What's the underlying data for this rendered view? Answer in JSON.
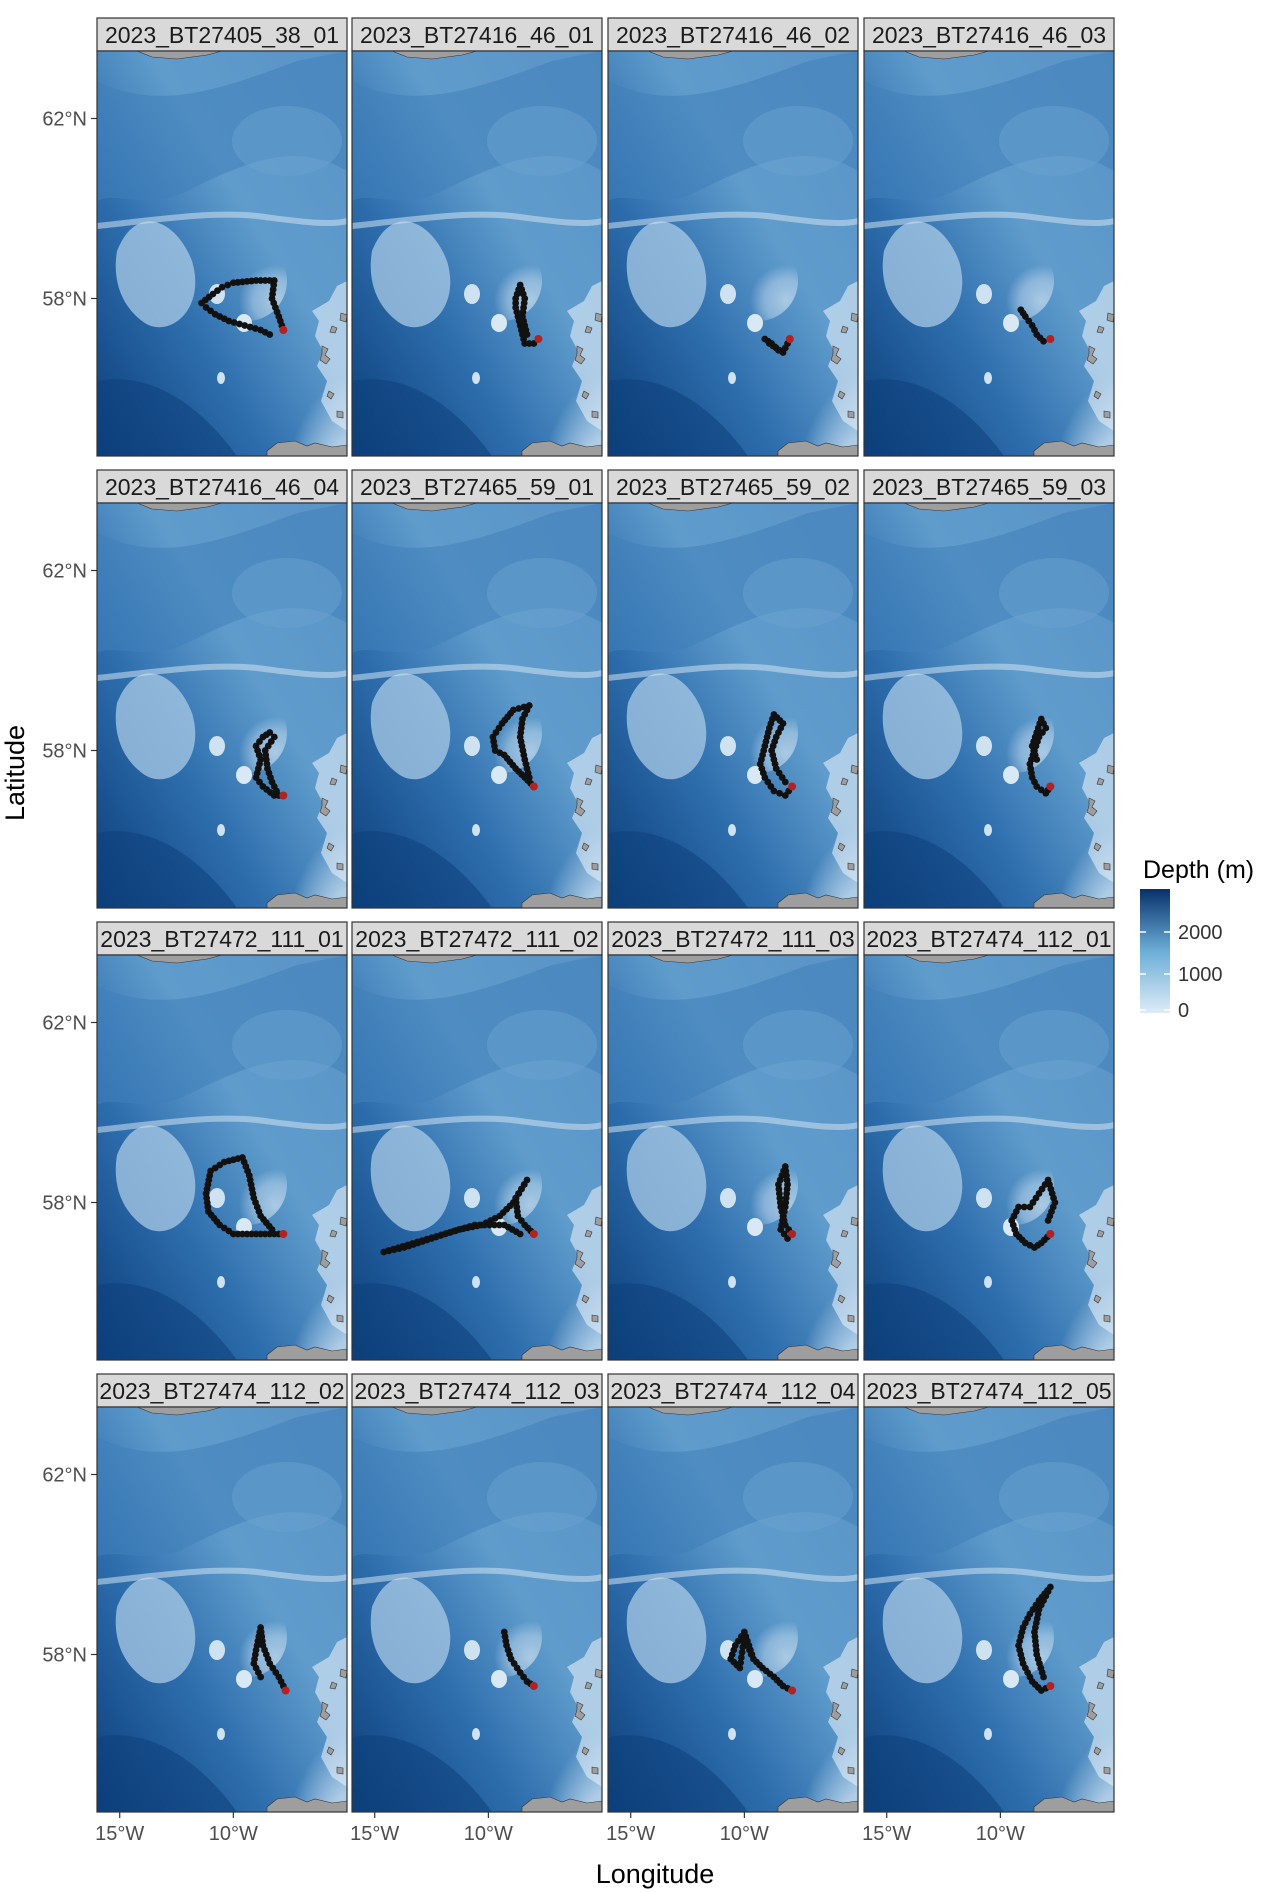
{
  "x_axis_label": "Longitude",
  "y_axis_label": "Latitude",
  "x_ticks": [
    "15°W",
    "10°W"
  ],
  "y_ticks": [
    "62°N",
    "58°N"
  ],
  "legend": {
    "title": "Depth (m)",
    "labels": [
      "2000",
      "1000",
      "0"
    ],
    "color_deep": "#08306b",
    "color_shallow": "#deebf7"
  },
  "colors": {
    "track_point": "#111111",
    "track_line": "#f4a6a6",
    "deploy_point": "#b22222",
    "land": "#9e9e9e",
    "strip_fill": "#d9d9d9",
    "panel_border": "#333333"
  },
  "panels": [
    "2023_BT27405_38_01",
    "2023_BT27416_46_01",
    "2023_BT27416_46_02",
    "2023_BT27416_46_03",
    "2023_BT27416_46_04",
    "2023_BT27465_59_01",
    "2023_BT27465_59_02",
    "2023_BT27465_59_03",
    "2023_BT27472_111_01",
    "2023_BT27472_111_02",
    "2023_BT27472_111_03",
    "2023_BT27474_112_01",
    "2023_BT27474_112_02",
    "2023_BT27474_112_03",
    "2023_BT27474_112_04",
    "2023_BT27474_112_05"
  ],
  "tracks": [
    [
      [
        -7.8,
        57.3
      ],
      [
        -8.0,
        57.6
      ],
      [
        -8.3,
        58.0
      ],
      [
        -8.2,
        58.4
      ],
      [
        -9.0,
        58.4
      ],
      [
        -10.0,
        58.35
      ],
      [
        -10.5,
        58.25
      ],
      [
        -10.9,
        58.1
      ],
      [
        -11.4,
        57.9
      ],
      [
        -11.2,
        57.8
      ],
      [
        -10.8,
        57.65
      ],
      [
        -10.2,
        57.5
      ],
      [
        -9.5,
        57.4
      ],
      [
        -8.8,
        57.3
      ],
      [
        -8.4,
        57.2
      ]
    ],
    [
      [
        -7.8,
        57.1
      ],
      [
        -8.0,
        57.0
      ],
      [
        -8.4,
        57.0
      ],
      [
        -8.6,
        57.4
      ],
      [
        -8.8,
        57.8
      ],
      [
        -8.8,
        58.0
      ],
      [
        -8.6,
        58.3
      ],
      [
        -8.4,
        58.0
      ],
      [
        -8.5,
        57.6
      ],
      [
        -8.3,
        57.2
      ]
    ],
    [
      [
        -8.0,
        57.1
      ],
      [
        -8.3,
        56.8
      ],
      [
        -8.6,
        56.9
      ],
      [
        -8.9,
        57.0
      ],
      [
        -9.1,
        57.1
      ],
      [
        -8.8,
        57.0
      ],
      [
        -8.5,
        56.85
      ]
    ],
    [
      [
        -7.8,
        57.1
      ],
      [
        -8.1,
        57.05
      ],
      [
        -8.4,
        57.2
      ],
      [
        -8.6,
        57.4
      ],
      [
        -8.9,
        57.6
      ],
      [
        -9.1,
        57.75
      ]
    ],
    [
      [
        -7.8,
        57.0
      ],
      [
        -8.2,
        57.0
      ],
      [
        -8.7,
        57.2
      ],
      [
        -9.0,
        57.4
      ],
      [
        -8.8,
        57.8
      ],
      [
        -9.0,
        58.1
      ],
      [
        -8.7,
        58.3
      ],
      [
        -8.4,
        58.4
      ],
      [
        -8.2,
        58.3
      ],
      [
        -8.6,
        58.0
      ],
      [
        -8.5,
        57.6
      ],
      [
        -8.3,
        57.3
      ],
      [
        -8.1,
        57.1
      ]
    ],
    [
      [
        -8.0,
        57.2
      ],
      [
        -8.4,
        57.4
      ],
      [
        -8.8,
        57.6
      ],
      [
        -9.3,
        57.9
      ],
      [
        -9.7,
        58.0
      ],
      [
        -9.8,
        58.3
      ],
      [
        -9.4,
        58.6
      ],
      [
        -8.9,
        58.9
      ],
      [
        -8.2,
        59.0
      ],
      [
        -8.5,
        58.7
      ],
      [
        -8.6,
        58.3
      ],
      [
        -8.4,
        57.8
      ],
      [
        -8.2,
        57.4
      ]
    ],
    [
      [
        -7.9,
        57.2
      ],
      [
        -8.2,
        57.0
      ],
      [
        -8.7,
        57.1
      ],
      [
        -9.1,
        57.4
      ],
      [
        -9.3,
        57.7
      ],
      [
        -9.1,
        58.1
      ],
      [
        -8.9,
        58.5
      ],
      [
        -8.7,
        58.8
      ],
      [
        -8.3,
        58.6
      ],
      [
        -8.6,
        58.3
      ],
      [
        -8.8,
        58.0
      ],
      [
        -8.6,
        57.6
      ],
      [
        -8.2,
        57.3
      ]
    ],
    [
      [
        -7.8,
        57.2
      ],
      [
        -8.0,
        57.05
      ],
      [
        -8.4,
        57.2
      ],
      [
        -8.6,
        57.4
      ],
      [
        -8.7,
        57.7
      ],
      [
        -8.5,
        58.0
      ],
      [
        -8.3,
        58.3
      ],
      [
        -8.0,
        58.5
      ],
      [
        -8.2,
        58.7
      ],
      [
        -8.4,
        58.4
      ],
      [
        -8.6,
        58.1
      ],
      [
        -8.4,
        57.8
      ]
    ],
    [
      [
        -7.8,
        57.3
      ],
      [
        -8.4,
        57.3
      ],
      [
        -9.2,
        57.3
      ],
      [
        -10.0,
        57.3
      ],
      [
        -10.6,
        57.5
      ],
      [
        -11.1,
        57.8
      ],
      [
        -11.2,
        58.2
      ],
      [
        -11.0,
        58.7
      ],
      [
        -10.4,
        58.9
      ],
      [
        -9.6,
        59.0
      ],
      [
        -9.3,
        58.6
      ],
      [
        -9.1,
        58.1
      ],
      [
        -8.8,
        57.7
      ],
      [
        -8.3,
        57.4
      ]
    ],
    [
      [
        -8.0,
        57.3
      ],
      [
        -8.4,
        57.5
      ],
      [
        -8.7,
        57.7
      ],
      [
        -8.8,
        58.1
      ],
      [
        -8.3,
        58.5
      ],
      [
        -8.9,
        58.0
      ],
      [
        -9.5,
        57.7
      ],
      [
        -10.3,
        57.5
      ],
      [
        -11.3,
        57.4
      ],
      [
        -12.5,
        57.2
      ],
      [
        -13.7,
        57.0
      ],
      [
        -14.6,
        56.9
      ],
      [
        -10.6,
        57.5
      ],
      [
        -9.3,
        57.5
      ],
      [
        -8.6,
        57.3
      ]
    ],
    [
      [
        -7.9,
        57.3
      ],
      [
        -8.2,
        57.5
      ],
      [
        -8.4,
        57.9
      ],
      [
        -8.5,
        58.4
      ],
      [
        -8.2,
        58.8
      ],
      [
        -8.1,
        58.4
      ],
      [
        -8.2,
        57.9
      ],
      [
        -8.4,
        57.4
      ],
      [
        -8.1,
        57.2
      ]
    ],
    [
      [
        -7.8,
        57.3
      ],
      [
        -8.2,
        57.1
      ],
      [
        -8.5,
        57.0
      ],
      [
        -8.9,
        57.1
      ],
      [
        -9.3,
        57.3
      ],
      [
        -9.5,
        57.6
      ],
      [
        -9.2,
        57.9
      ],
      [
        -8.7,
        57.9
      ],
      [
        -8.3,
        58.2
      ],
      [
        -7.9,
        58.5
      ],
      [
        -7.6,
        58.0
      ],
      [
        -7.9,
        57.6
      ]
    ],
    [
      [
        -7.7,
        57.2
      ],
      [
        -8.0,
        57.5
      ],
      [
        -8.4,
        57.8
      ],
      [
        -8.7,
        58.2
      ],
      [
        -8.8,
        58.6
      ],
      [
        -9.0,
        58.1
      ],
      [
        -9.1,
        57.8
      ],
      [
        -8.8,
        57.5
      ]
    ],
    [
      [
        -8.0,
        57.3
      ],
      [
        -8.3,
        57.4
      ],
      [
        -8.6,
        57.6
      ],
      [
        -9.0,
        57.9
      ],
      [
        -9.2,
        58.2
      ],
      [
        -9.3,
        58.5
      ]
    ],
    [
      [
        -7.9,
        57.2
      ],
      [
        -8.3,
        57.3
      ],
      [
        -8.7,
        57.5
      ],
      [
        -9.2,
        57.7
      ],
      [
        -9.6,
        57.9
      ],
      [
        -9.8,
        58.2
      ],
      [
        -10.0,
        58.5
      ],
      [
        -10.4,
        58.2
      ],
      [
        -10.6,
        57.9
      ],
      [
        -10.2,
        57.7
      ],
      [
        -10.0,
        58.4
      ],
      [
        -9.7,
        58.0
      ]
    ],
    [
      [
        -7.8,
        57.3
      ],
      [
        -8.2,
        57.2
      ],
      [
        -8.6,
        57.4
      ],
      [
        -9.0,
        57.8
      ],
      [
        -9.2,
        58.2
      ],
      [
        -9.0,
        58.6
      ],
      [
        -8.7,
        58.9
      ],
      [
        -8.3,
        59.2
      ],
      [
        -7.8,
        59.5
      ],
      [
        -8.3,
        59.0
      ],
      [
        -8.5,
        58.5
      ],
      [
        -8.4,
        58.0
      ],
      [
        -8.1,
        57.5
      ]
    ]
  ]
}
